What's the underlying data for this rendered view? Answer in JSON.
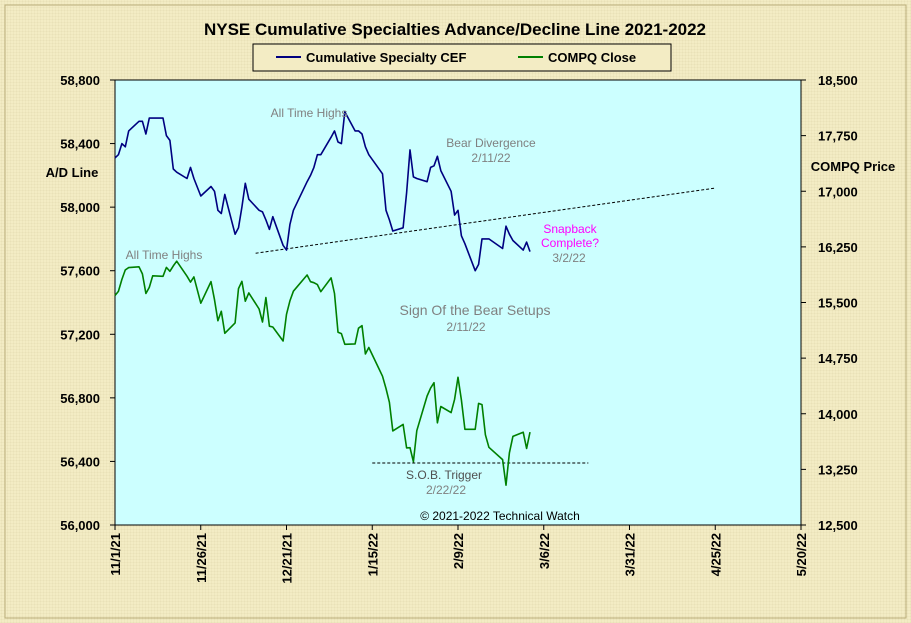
{
  "chart_data": {
    "type": "line",
    "title": "NYSE Cumulative  Specialties  Advance/Decline  Line  2021-2022",
    "ylabel_left": "A/D Line",
    "ylabel_right": "COMPQ Price",
    "ylim_left": [
      56000,
      58800
    ],
    "ylim_right": [
      12500,
      18500
    ],
    "left_ticks": [
      "58,800",
      "58,400",
      "58,000",
      "57,600",
      "57,200",
      "56,800",
      "56,400",
      "56,000"
    ],
    "right_ticks": [
      "18,500",
      "17,750",
      "17,000",
      "16,250",
      "15,500",
      "14,750",
      "14,000",
      "13,250",
      "12,500"
    ],
    "x_ticks": [
      "11/1/21",
      "11/26/21",
      "12/21/21",
      "1/15/22",
      "2/9/22",
      "3/6/22",
      "3/31/22",
      "4/25/22",
      "5/20/22"
    ],
    "x_range": [
      "2021-11-01",
      "2022-05-20"
    ],
    "legend": {
      "placement": "top-center",
      "items": [
        "Cumulative Specialty CEF",
        "COMPQ Close"
      ]
    },
    "colors": {
      "plot_bg": "#ccffff",
      "frame_bg": "#f3ecc4",
      "ad_line": "#000080",
      "compq_line": "#008000",
      "gray_text": "#808080",
      "magenta": "#ff00ff"
    },
    "series": [
      {
        "name": "Cumulative Specialty CEF",
        "axis": "left",
        "x": [
          "2021-11-01",
          "2021-11-02",
          "2021-11-03",
          "2021-11-04",
          "2021-11-05",
          "2021-11-08",
          "2021-11-09",
          "2021-11-10",
          "2021-11-11",
          "2021-11-12",
          "2021-11-15",
          "2021-11-16",
          "2021-11-17",
          "2021-11-18",
          "2021-11-19",
          "2021-11-22",
          "2021-11-23",
          "2021-11-24",
          "2021-11-26",
          "2021-11-29",
          "2021-11-30",
          "2021-12-01",
          "2021-12-02",
          "2021-12-03",
          "2021-12-06",
          "2021-12-07",
          "2021-12-08",
          "2021-12-09",
          "2021-12-10",
          "2021-12-13",
          "2021-12-14",
          "2021-12-15",
          "2021-12-16",
          "2021-12-17",
          "2021-12-20",
          "2021-12-21",
          "2021-12-22",
          "2021-12-23",
          "2021-12-27",
          "2021-12-28",
          "2021-12-29",
          "2021-12-30",
          "2021-12-31",
          "2022-01-03",
          "2022-01-04",
          "2022-01-05",
          "2022-01-06",
          "2022-01-07",
          "2022-01-10",
          "2022-01-11",
          "2022-01-12",
          "2022-01-13",
          "2022-01-14",
          "2022-01-18",
          "2022-01-19",
          "2022-01-20",
          "2022-01-21",
          "2022-01-24",
          "2022-01-25",
          "2022-01-26",
          "2022-01-27",
          "2022-01-28",
          "2022-01-31",
          "2022-02-01",
          "2022-02-02",
          "2022-02-03",
          "2022-02-04",
          "2022-02-07",
          "2022-02-08",
          "2022-02-09",
          "2022-02-10",
          "2022-02-11",
          "2022-02-14",
          "2022-02-15",
          "2022-02-16",
          "2022-02-17",
          "2022-02-18",
          "2022-02-22",
          "2022-02-23",
          "2022-02-24",
          "2022-02-25",
          "2022-02-28",
          "2022-03-01",
          "2022-03-02"
        ],
        "values": [
          58310,
          58330,
          58400,
          58380,
          58480,
          58540,
          58540,
          58460,
          58560,
          58560,
          58560,
          58450,
          58420,
          58240,
          58220,
          58180,
          58250,
          58180,
          58070,
          58130,
          58100,
          57980,
          57960,
          58080,
          57830,
          57870,
          58000,
          58150,
          58050,
          57980,
          57970,
          57920,
          57860,
          57940,
          57760,
          57730,
          57890,
          57980,
          58160,
          58200,
          58250,
          58330,
          58330,
          58440,
          58480,
          58410,
          58400,
          58600,
          58480,
          58480,
          58460,
          58380,
          58330,
          58210,
          57980,
          57920,
          57850,
          57870,
          58090,
          58360,
          58190,
          58180,
          58160,
          58250,
          58260,
          58320,
          58230,
          58100,
          57950,
          57980,
          57820,
          57770,
          57600,
          57640,
          57800,
          57800,
          57800,
          57740,
          57880,
          57830,
          57790,
          57730,
          57780,
          57720
        ]
      },
      {
        "name": "COMPQ Close",
        "axis": "right",
        "x": [
          "2021-11-01",
          "2021-11-02",
          "2021-11-03",
          "2021-11-04",
          "2021-11-05",
          "2021-11-08",
          "2021-11-09",
          "2021-11-10",
          "2021-11-11",
          "2021-11-12",
          "2021-11-15",
          "2021-11-16",
          "2021-11-17",
          "2021-11-18",
          "2021-11-19",
          "2021-11-22",
          "2021-11-23",
          "2021-11-24",
          "2021-11-26",
          "2021-11-29",
          "2021-11-30",
          "2021-12-01",
          "2021-12-02",
          "2021-12-03",
          "2021-12-06",
          "2021-12-07",
          "2021-12-08",
          "2021-12-09",
          "2021-12-10",
          "2021-12-13",
          "2021-12-14",
          "2021-12-15",
          "2021-12-16",
          "2021-12-17",
          "2021-12-20",
          "2021-12-21",
          "2021-12-22",
          "2021-12-23",
          "2021-12-27",
          "2021-12-28",
          "2021-12-29",
          "2021-12-30",
          "2021-12-31",
          "2022-01-03",
          "2022-01-04",
          "2022-01-05",
          "2022-01-06",
          "2022-01-07",
          "2022-01-10",
          "2022-01-11",
          "2022-01-12",
          "2022-01-13",
          "2022-01-14",
          "2022-01-18",
          "2022-01-19",
          "2022-01-20",
          "2022-01-21",
          "2022-01-24",
          "2022-01-25",
          "2022-01-26",
          "2022-01-27",
          "2022-01-28",
          "2022-01-31",
          "2022-02-01",
          "2022-02-02",
          "2022-02-03",
          "2022-02-04",
          "2022-02-07",
          "2022-02-08",
          "2022-02-09",
          "2022-02-10",
          "2022-02-11",
          "2022-02-14",
          "2022-02-15",
          "2022-02-16",
          "2022-02-17",
          "2022-02-18",
          "2022-02-22",
          "2022-02-23",
          "2022-02-24",
          "2022-02-25",
          "2022-02-28",
          "2022-03-01",
          "2022-03-02"
        ],
        "values": [
          15595,
          15650,
          15811,
          15940,
          15971,
          15982,
          15886,
          15622,
          15704,
          15860,
          15853,
          15973,
          15921,
          15993,
          16057,
          15854,
          15775,
          15845,
          15491,
          15782,
          15538,
          15254,
          15382,
          15085,
          15225,
          15687,
          15786,
          15518,
          15630,
          15413,
          15237,
          15566,
          15180,
          15170,
          14981,
          15341,
          15522,
          15653,
          15871,
          15781,
          15767,
          15741,
          15645,
          15832,
          15622,
          15100,
          15081,
          14936,
          14942,
          15153,
          15188,
          14806,
          14893,
          14506,
          14340,
          14155,
          13769,
          13856,
          13540,
          13542,
          13353,
          13771,
          14240,
          14346,
          14418,
          13878,
          14098,
          14015,
          14195,
          14491,
          14186,
          13791,
          13790,
          14139,
          14124,
          13716,
          13548,
          13382,
          13037,
          13474,
          13695,
          13751,
          13532,
          13752
        ]
      }
    ],
    "annotations": [
      {
        "text": "All Time Highs",
        "color": "gray"
      },
      {
        "text": "Bear Divergence",
        "color": "gray"
      },
      {
        "text": "2/11/22",
        "color": "gray"
      },
      {
        "text": "Snapback",
        "color": "magenta"
      },
      {
        "text": "Complete?",
        "color": "magenta"
      },
      {
        "text": "3/2/22",
        "color": "gray"
      },
      {
        "text": "All Time Highs",
        "color": "gray"
      },
      {
        "text": "Sign Of the Bear Setups",
        "color": "gray"
      },
      {
        "text": "2/11/22",
        "color": "gray"
      },
      {
        "text": "S.O.B. Trigger",
        "color": "dark"
      },
      {
        "text": "2/22/22",
        "color": "gray"
      },
      {
        "text": "© 2021-2022  Technical  Watch",
        "color": "black"
      }
    ],
    "trendlines": [
      {
        "axis": "left",
        "from": {
          "x": "2021-12-12",
          "y": 57710
        },
        "to": {
          "x": "2022-04-25",
          "y": 58120
        }
      },
      {
        "axis": "left",
        "from": {
          "x": "2022-01-15",
          "y": 56390
        },
        "to": {
          "x": "2022-03-19",
          "y": 56390
        }
      }
    ]
  }
}
